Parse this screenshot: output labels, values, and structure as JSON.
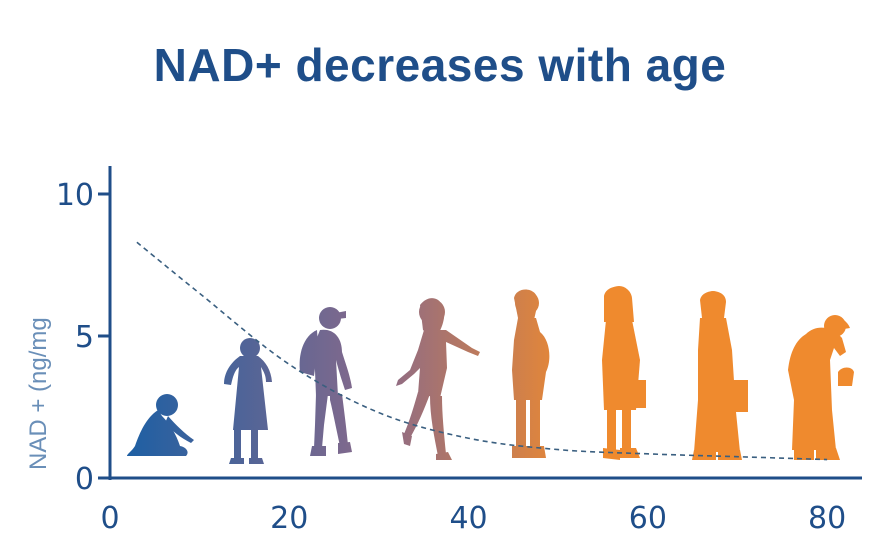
{
  "title": "NAD+ decreases with age",
  "colors": {
    "title": "#1f4e89",
    "axis": "#1f4e89",
    "ylabel": "#6a8fb8",
    "curve": "#3a5f80",
    "gradient_start": "#1b5fa4",
    "gradient_mid": "#8a6a8a",
    "gradient_end": "#ef8a2e"
  },
  "chart_data": {
    "type": "line",
    "ylabel": "NAD + (ng/mg",
    "xlim": [
      0,
      83
    ],
    "ylim": [
      0,
      10.5
    ],
    "x_ticks": [
      0,
      20,
      40,
      60,
      80
    ],
    "y_ticks": [
      0,
      5,
      10
    ],
    "series": [
      {
        "style": "dashed",
        "x": [
          3,
          10,
          20,
          30,
          40,
          50,
          60,
          70,
          80
        ],
        "y": [
          8.3,
          6.5,
          4.0,
          2.3,
          1.4,
          1.0,
          0.85,
          0.75,
          0.65
        ]
      }
    ],
    "silhouettes": [
      {
        "name": "baby-silhouette",
        "age": 5
      },
      {
        "name": "child-silhouette",
        "age": 16
      },
      {
        "name": "teen-silhouette",
        "age": 25
      },
      {
        "name": "young-woman-silhouette",
        "age": 36
      },
      {
        "name": "pregnant-woman-silhouette",
        "age": 47
      },
      {
        "name": "adult-woman-silhouette",
        "age": 57
      },
      {
        "name": "mature-woman-silhouette",
        "age": 67
      },
      {
        "name": "elderly-woman-silhouette",
        "age": 79
      }
    ]
  }
}
